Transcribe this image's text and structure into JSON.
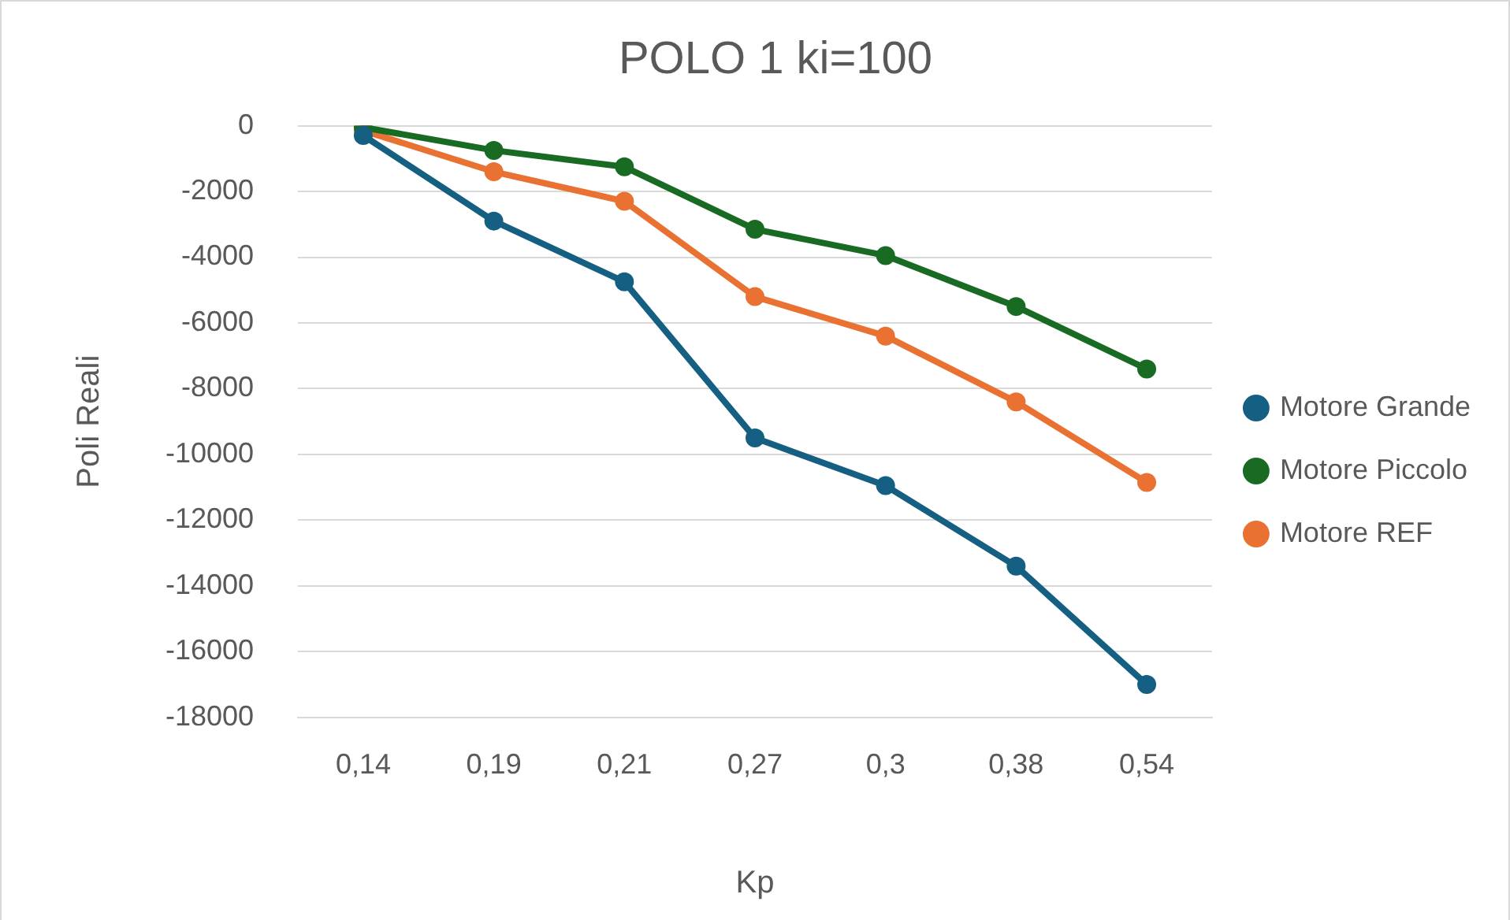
{
  "chart_data": {
    "type": "line",
    "title": "POLO 1 ki=100",
    "xlabel": "Kp",
    "ylabel": "Poli Reali",
    "categories": [
      "0,14",
      "0,19",
      "0,21",
      "0,27",
      "0,3",
      "0,38",
      "0,54"
    ],
    "series": [
      {
        "name": "Motore Grande",
        "color": "#156082",
        "values": [
          -300,
          -2900,
          -4750,
          -9500,
          -10950,
          -13400,
          -17000
        ]
      },
      {
        "name": "Motore Piccolo",
        "color": "#196b24",
        "values": [
          -50,
          -750,
          -1250,
          -3150,
          -3950,
          -5500,
          -7400
        ]
      },
      {
        "name": "Motore REF",
        "color": "#e97132",
        "values": [
          -150,
          -1400,
          -2300,
          -5200,
          -6400,
          -8400,
          -10850
        ]
      }
    ],
    "ylim": [
      -18000,
      0
    ],
    "yticks": [
      0,
      -2000,
      -4000,
      -6000,
      -8000,
      -10000,
      -12000,
      -14000,
      -16000,
      -18000
    ],
    "grid": "y",
    "legend": "right",
    "marker": "circle",
    "line_style": "solid"
  }
}
